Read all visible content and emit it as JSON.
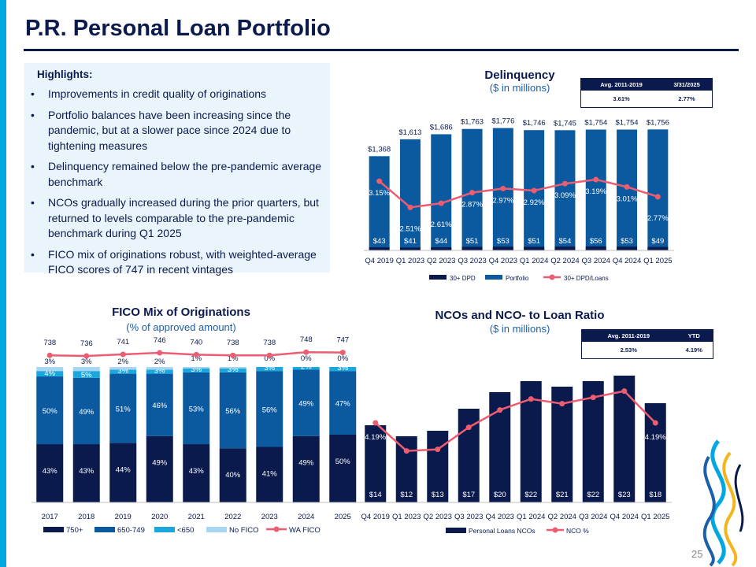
{
  "title": "P.R. Personal Loan Portfolio",
  "highlights": {
    "heading": "Highlights:",
    "items": [
      "Improvements in credit quality of originations",
      "Portfolio balances have been increasing since the pandemic, but at a slower pace since 2024 due to tightening measures",
      "Delinquency remained below the pre-pandemic average benchmark",
      "NCOs gradually increased during the prior quarters, but returned to levels comparable to the pre-pandemic benchmark during Q1 2025",
      "FICO mix of originations robust, with weighted-average FICO scores of 747 in recent vintages"
    ]
  },
  "bullet_glyph": "•",
  "colors": {
    "navy": "#0b1a4d",
    "blue": "#0b5aa0",
    "cyan": "#1aa7de",
    "light": "#a9d6f2",
    "pink": "#ec5d71"
  },
  "delinquency_table": {
    "headers": [
      "Avg. 2011-2019",
      "3/31/2025"
    ],
    "values": [
      "3.61%",
      "2.77%"
    ]
  },
  "nco_table": {
    "headers": [
      "Avg. 2011-2019",
      "YTD"
    ],
    "values": [
      "2.53%",
      "4.19%"
    ]
  },
  "page_number": "25",
  "chart_data": [
    {
      "type": "bar",
      "title": "Delinquency",
      "subtitle": "($ in millions)",
      "categories": [
        "Q4 2019",
        "Q1 2023",
        "Q2 2023",
        "Q3 2023",
        "Q4 2023",
        "Q1 2024",
        "Q2 2024",
        "Q3 2024",
        "Q4 2024",
        "Q1 2025"
      ],
      "series": [
        {
          "name": "30+ DPD",
          "values": [
            43,
            41,
            44,
            51,
            53,
            51,
            54,
            56,
            53,
            49
          ],
          "labels": [
            "$43",
            "$41",
            "$44",
            "$51",
            "$53",
            "$51",
            "$54",
            "$56",
            "$53",
            "$49"
          ]
        },
        {
          "name": "Portfolio",
          "values": [
            1368,
            1613,
            1686,
            1763,
            1776,
            1746,
            1745,
            1754,
            1754,
            1756
          ],
          "labels": [
            "$1,368",
            "$1,613",
            "$1,686",
            "$1,763",
            "$1,776",
            "$1,746",
            "$1,745",
            "$1,754",
            "$1,754",
            "$1,756"
          ]
        },
        {
          "name": "30+ DPD/Loans",
          "values": [
            3.15,
            2.51,
            2.61,
            2.87,
            2.97,
            2.92,
            3.09,
            3.19,
            3.01,
            2.77
          ],
          "labels": [
            "3.15%",
            "2.51%",
            "2.61%",
            "2.87%",
            "2.97%",
            "2.92%",
            "3.09%",
            "3.19%",
            "3.01%",
            "2.77%"
          ]
        }
      ],
      "legend_position": "bottom"
    },
    {
      "type": "bar",
      "title": "FICO Mix of Originations",
      "subtitle": "(% of approved amount)",
      "categories": [
        "2017",
        "2018",
        "2019",
        "2020",
        "2021",
        "2022",
        "2023",
        "2024",
        "2025"
      ],
      "series": [
        {
          "name": "750+",
          "values": [
            43,
            43,
            44,
            49,
            43,
            40,
            41,
            49,
            50
          ],
          "labels": [
            "43%",
            "43%",
            "44%",
            "49%",
            "43%",
            "40%",
            "41%",
            "49%",
            "50%"
          ]
        },
        {
          "name": "650-749",
          "values": [
            50,
            49,
            51,
            46,
            53,
            56,
            56,
            49,
            47
          ],
          "labels": [
            "50%",
            "49%",
            "51%",
            "46%",
            "53%",
            "56%",
            "56%",
            "49%",
            "47%"
          ]
        },
        {
          "name": "<650",
          "values": [
            4,
            5,
            3,
            3,
            3,
            3,
            3,
            2,
            3
          ],
          "labels": [
            "4%",
            "5%",
            "3%",
            "3%",
            "3%",
            "3%",
            "3%",
            "2%",
            "3%"
          ]
        },
        {
          "name": "No FICO",
          "values": [
            3,
            3,
            2,
            2,
            1,
            1,
            0,
            0,
            0
          ],
          "labels": [
            "3%",
            "3%",
            "2%",
            "2%",
            "1%",
            "1%",
            "0%",
            "0%",
            "0%"
          ]
        },
        {
          "name": "WA FICO",
          "values": [
            738,
            736,
            741,
            746,
            740,
            738,
            738,
            748,
            747
          ],
          "labels": [
            "738",
            "736",
            "741",
            "746",
            "740",
            "738",
            "738",
            "748",
            "747"
          ]
        }
      ],
      "legend_position": "bottom"
    },
    {
      "type": "bar",
      "title": "NCOs and NCO- to Loan Ratio",
      "subtitle": "($ in millions)",
      "categories": [
        "Q4 2019",
        "Q1 2023",
        "Q2 2023",
        "Q3 2023",
        "Q4 2023",
        "Q1 2024",
        "Q2 2024",
        "Q3 2024",
        "Q4 2024",
        "Q1 2025"
      ],
      "series": [
        {
          "name": "Personal Loans NCOs",
          "values": [
            14,
            12,
            13,
            17,
            20,
            22,
            21,
            22,
            23,
            18
          ],
          "labels": [
            "$14",
            "$12",
            "$13",
            "$17",
            "$20",
            "$22",
            "$21",
            "$22",
            "$23",
            "$18"
          ]
        },
        {
          "name": "NCO %",
          "values": [
            4.19,
            3.3,
            3.35,
            4.05,
            4.6,
            4.95,
            4.8,
            5.0,
            5.2,
            4.19
          ],
          "labels": [
            "4.19%",
            "",
            "",
            "",
            "",
            "",
            "",
            "",
            "",
            "4.19%"
          ]
        }
      ],
      "legend_position": "bottom"
    }
  ]
}
